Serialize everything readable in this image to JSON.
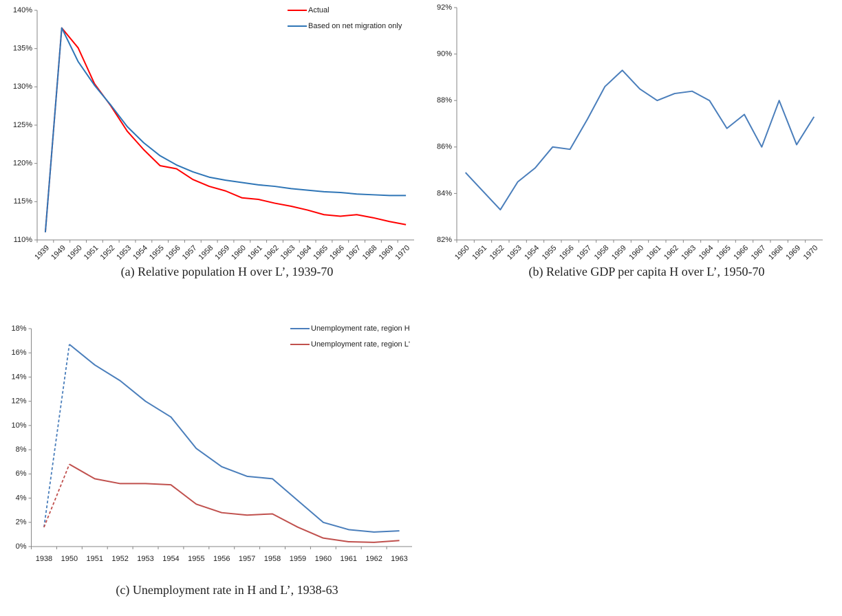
{
  "chart_data": [
    {
      "type": "line",
      "caption": "(a) Relative population H over L’, 1939-70",
      "categories": [
        "1939",
        "1949",
        "1950",
        "1951",
        "1952",
        "1953",
        "1954",
        "1955",
        "1956",
        "1957",
        "1958",
        "1959",
        "1960",
        "1961",
        "1962",
        "1963",
        "1964",
        "1965",
        "1966",
        "1967",
        "1968",
        "1969",
        "1970"
      ],
      "series": [
        {
          "name": "Actual",
          "color": "#ff0000",
          "values": [
            111,
            137.7,
            135.1,
            130.4,
            127.5,
            124.2,
            121.8,
            119.7,
            119.3,
            117.9,
            117.0,
            116.4,
            115.5,
            115.3,
            114.8,
            114.4,
            113.9,
            113.3,
            113.1,
            113.3,
            112.9,
            112.4,
            112.0
          ]
        },
        {
          "name": "Based on net migration only",
          "color": "#2e75b6",
          "values": [
            111,
            137.7,
            133.3,
            130.2,
            127.6,
            124.8,
            122.7,
            121.0,
            119.8,
            118.9,
            118.2,
            117.8,
            117.5,
            117.2,
            117.0,
            116.7,
            116.5,
            116.3,
            116.2,
            116.0,
            115.9,
            115.8,
            115.8
          ]
        }
      ],
      "ylim": [
        110,
        140
      ],
      "yticks": [
        {
          "value": 110,
          "label": "110%"
        },
        {
          "value": 115,
          "label": "115%"
        },
        {
          "value": 120,
          "label": "120%"
        },
        {
          "value": 125,
          "label": "125%"
        },
        {
          "value": 130,
          "label": "130%"
        },
        {
          "value": 135,
          "label": "135%"
        },
        {
          "value": 140,
          "label": "140%"
        }
      ],
      "legend": "upper right",
      "rotated_x_labels": true
    },
    {
      "type": "line",
      "caption": "(b) Relative GDP per capita H over L’, 1950-70",
      "categories": [
        "1950",
        "1951",
        "1952",
        "1953",
        "1954",
        "1955",
        "1956",
        "1957",
        "1958",
        "1959",
        "1960",
        "1961",
        "1962",
        "1963",
        "1964",
        "1965",
        "1966",
        "1967",
        "1968",
        "1969",
        "1970"
      ],
      "series": [
        {
          "color": "#4a7ebb",
          "values": [
            84.9,
            84.1,
            83.3,
            84.5,
            85.1,
            86.0,
            85.9,
            87.2,
            88.6,
            89.3,
            88.5,
            88.0,
            88.3,
            88.4,
            88.0,
            86.8,
            87.4,
            86.0,
            88.0,
            86.1,
            87.3
          ]
        }
      ],
      "ylim": [
        82,
        92
      ],
      "yticks": [
        {
          "value": 82,
          "label": "82%"
        },
        {
          "value": 84,
          "label": "84%"
        },
        {
          "value": 86,
          "label": "86%"
        },
        {
          "value": 88,
          "label": "88%"
        },
        {
          "value": 90,
          "label": "90%"
        },
        {
          "value": 92,
          "label": "92%"
        }
      ],
      "rotated_x_labels": true
    },
    {
      "type": "line",
      "caption": "(c) Unemployment rate in H and L’, 1938-63",
      "categories": [
        "1938",
        "1950",
        "1951",
        "1952",
        "1953",
        "1954",
        "1955",
        "1956",
        "1957",
        "1958",
        "1959",
        "1960",
        "1961",
        "1962",
        "1963"
      ],
      "series": [
        {
          "name": "Unemployment rate, region H",
          "color": "#4a7ebb",
          "values": [
            1.6,
            16.7,
            15.0,
            13.7,
            12.0,
            10.7,
            8.1,
            6.6,
            5.8,
            5.6,
            3.8,
            2.0,
            1.4,
            1.2,
            1.3
          ]
        },
        {
          "name": "Unemployment rate, region L'",
          "color": "#c0504d",
          "values": [
            1.6,
            6.8,
            5.6,
            5.2,
            5.2,
            5.1,
            3.5,
            2.8,
            2.6,
            2.7,
            1.6,
            0.7,
            0.4,
            0.35,
            0.5
          ]
        }
      ],
      "ylim": [
        0,
        18
      ],
      "yticks": [
        {
          "value": 0,
          "label": "0%"
        },
        {
          "value": 2,
          "label": "2%"
        },
        {
          "value": 4,
          "label": "4%"
        },
        {
          "value": 6,
          "label": "6%"
        },
        {
          "value": 8,
          "label": "8%"
        },
        {
          "value": 10,
          "label": "10%"
        },
        {
          "value": 12,
          "label": "12%"
        },
        {
          "value": 14,
          "label": "14%"
        },
        {
          "value": 16,
          "label": "16%"
        },
        {
          "value": 18,
          "label": "18%"
        }
      ],
      "legend": "upper right",
      "dashed_first_segment": true,
      "rotated_x_labels": false
    }
  ]
}
